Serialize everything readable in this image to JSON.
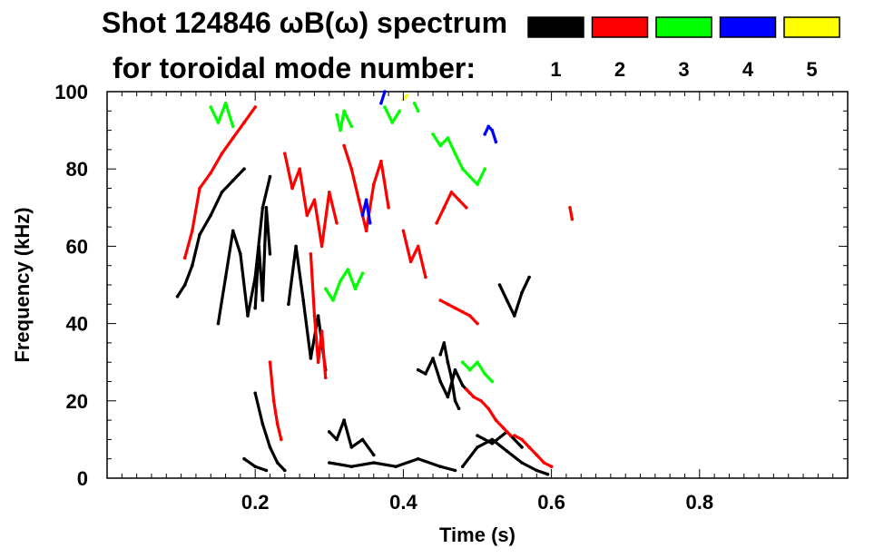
{
  "chart_data": {
    "type": "heatmap",
    "title": "Shot 124846 ωB(ω) spectrum",
    "subtitle": "for toroidal mode number:",
    "xlabel": "Time (s)",
    "ylabel": "Frequency (kHz)",
    "xlim": [
      0.0,
      1.0
    ],
    "ylim": [
      0,
      100
    ],
    "x_ticks": [
      {
        "value": 0.2,
        "label": "0.2"
      },
      {
        "value": 0.4,
        "label": "0.4"
      },
      {
        "value": 0.6,
        "label": "0.6"
      },
      {
        "value": 0.8,
        "label": "0.8"
      }
    ],
    "y_ticks": [
      {
        "value": 0,
        "label": "0"
      },
      {
        "value": 20,
        "label": "20"
      },
      {
        "value": 40,
        "label": "40"
      },
      {
        "value": 60,
        "label": "60"
      },
      {
        "value": 80,
        "label": "80"
      },
      {
        "value": 100,
        "label": "100"
      }
    ],
    "legend_placement": "top-right",
    "legend": [
      {
        "label": "1",
        "color": "#000000"
      },
      {
        "label": "2",
        "color": "#ff0000"
      },
      {
        "label": "3",
        "color": "#00ff00"
      },
      {
        "label": "4",
        "color": "#0000ff"
      },
      {
        "label": "5",
        "color": "#ffff00"
      }
    ],
    "series": [
      {
        "mode": 1,
        "color": "#000000",
        "segments": [
          [
            [
              0.095,
              47
            ],
            [
              0.105,
              50
            ],
            [
              0.115,
              55
            ],
            [
              0.125,
              63
            ],
            [
              0.14,
              68
            ],
            [
              0.155,
              74
            ],
            [
              0.17,
              77
            ],
            [
              0.185,
              80
            ]
          ],
          [
            [
              0.15,
              40
            ],
            [
              0.16,
              52
            ],
            [
              0.17,
              64
            ],
            [
              0.18,
              58
            ],
            [
              0.19,
              42
            ],
            [
              0.2,
              52
            ],
            [
              0.21,
              70
            ],
            [
              0.22,
              78
            ]
          ],
          [
            [
              0.2,
              22
            ],
            [
              0.21,
              14
            ],
            [
              0.22,
              8
            ],
            [
              0.23,
              4
            ],
            [
              0.24,
              2
            ]
          ],
          [
            [
              0.185,
              5
            ],
            [
              0.2,
              3
            ],
            [
              0.215,
              2
            ]
          ],
          [
            [
              0.245,
              45
            ],
            [
              0.255,
              60
            ],
            [
              0.265,
              46
            ],
            [
              0.275,
              31
            ],
            [
              0.285,
              42
            ],
            [
              0.295,
              28
            ]
          ],
          [
            [
              0.3,
              12
            ],
            [
              0.31,
              10
            ],
            [
              0.32,
              15
            ],
            [
              0.33,
              8
            ],
            [
              0.345,
              10
            ],
            [
              0.36,
              6
            ]
          ],
          [
            [
              0.3,
              4
            ],
            [
              0.33,
              3
            ],
            [
              0.36,
              4
            ],
            [
              0.39,
              3
            ],
            [
              0.42,
              5
            ],
            [
              0.45,
              3
            ],
            [
              0.47,
              2
            ]
          ],
          [
            [
              0.42,
              28
            ],
            [
              0.43,
              27
            ],
            [
              0.44,
              31
            ],
            [
              0.45,
              25
            ],
            [
              0.46,
              21
            ],
            [
              0.47,
              28
            ],
            [
              0.48,
              24
            ],
            [
              0.49,
              22
            ]
          ],
          [
            [
              0.45,
              32
            ],
            [
              0.455,
              35
            ],
            [
              0.46,
              30
            ],
            [
              0.465,
              26
            ],
            [
              0.47,
              20
            ],
            [
              0.475,
              18
            ]
          ],
          [
            [
              0.48,
              3
            ],
            [
              0.5,
              8
            ],
            [
              0.52,
              10
            ],
            [
              0.54,
              7
            ],
            [
              0.56,
              4
            ],
            [
              0.58,
              2
            ],
            [
              0.595,
              1
            ]
          ],
          [
            [
              0.5,
              11
            ],
            [
              0.52,
              9
            ],
            [
              0.54,
              12
            ],
            [
              0.56,
              8
            ]
          ],
          [
            [
              0.2,
              44
            ],
            [
              0.205,
              60
            ],
            [
              0.21,
              46
            ],
            [
              0.215,
              70
            ],
            [
              0.22,
              58
            ]
          ],
          [
            [
              0.53,
              50
            ],
            [
              0.54,
              46
            ],
            [
              0.55,
              42
            ],
            [
              0.56,
              48
            ],
            [
              0.57,
              52
            ]
          ]
        ]
      },
      {
        "mode": 2,
        "color": "#ff0000",
        "segments": [
          [
            [
              0.105,
              57
            ],
            [
              0.115,
              64
            ],
            [
              0.125,
              75
            ],
            [
              0.14,
              79
            ],
            [
              0.155,
              84
            ],
            [
              0.17,
              88
            ],
            [
              0.185,
              92
            ],
            [
              0.2,
              96
            ]
          ],
          [
            [
              0.24,
              84
            ],
            [
              0.25,
              75
            ],
            [
              0.26,
              80
            ],
            [
              0.27,
              68
            ],
            [
              0.28,
              72
            ],
            [
              0.29,
              60
            ],
            [
              0.3,
              74
            ],
            [
              0.31,
              66
            ]
          ],
          [
            [
              0.275,
              58
            ],
            [
              0.28,
              42
            ],
            [
              0.285,
              30
            ],
            [
              0.29,
              38
            ],
            [
              0.295,
              26
            ]
          ],
          [
            [
              0.32,
              86
            ],
            [
              0.33,
              80
            ],
            [
              0.34,
              72
            ],
            [
              0.35,
              64
            ],
            [
              0.36,
              76
            ],
            [
              0.37,
              82
            ],
            [
              0.38,
              70
            ]
          ],
          [
            [
              0.4,
              64
            ],
            [
              0.41,
              56
            ],
            [
              0.42,
              60
            ],
            [
              0.43,
              52
            ]
          ],
          [
            [
              0.445,
              66
            ],
            [
              0.455,
              70
            ],
            [
              0.465,
              74
            ],
            [
              0.475,
              72
            ],
            [
              0.485,
              70
            ]
          ],
          [
            [
              0.45,
              46
            ],
            [
              0.46,
              45
            ],
            [
              0.47,
              44
            ],
            [
              0.48,
              43
            ],
            [
              0.49,
              42
            ],
            [
              0.5,
              40
            ]
          ],
          [
            [
              0.485,
              23
            ],
            [
              0.495,
              21
            ],
            [
              0.505,
              20
            ],
            [
              0.515,
              18
            ],
            [
              0.525,
              15
            ],
            [
              0.535,
              13
            ],
            [
              0.545,
              11
            ]
          ],
          [
            [
              0.55,
              11
            ],
            [
              0.56,
              10
            ],
            [
              0.57,
              8
            ],
            [
              0.58,
              6
            ],
            [
              0.59,
              4
            ],
            [
              0.6,
              3
            ]
          ],
          [
            [
              0.22,
              30
            ],
            [
              0.225,
              20
            ],
            [
              0.23,
              14
            ],
            [
              0.235,
              10
            ]
          ],
          [
            [
              0.625,
              70
            ],
            [
              0.628,
              67
            ]
          ]
        ]
      },
      {
        "mode": 3,
        "color": "#00ff00",
        "segments": [
          [
            [
              0.14,
              96
            ],
            [
              0.15,
              92
            ],
            [
              0.16,
              97
            ],
            [
              0.17,
              91
            ]
          ],
          [
            [
              0.295,
              49
            ],
            [
              0.305,
              46
            ],
            [
              0.315,
              51
            ],
            [
              0.325,
              54
            ],
            [
              0.335,
              49
            ],
            [
              0.345,
              53
            ]
          ],
          [
            [
              0.31,
              94
            ],
            [
              0.315,
              90
            ],
            [
              0.32,
              95
            ],
            [
              0.33,
              91
            ]
          ],
          [
            [
              0.375,
              96
            ],
            [
              0.385,
              92
            ],
            [
              0.395,
              95
            ]
          ],
          [
            [
              0.44,
              89
            ],
            [
              0.45,
              86
            ],
            [
              0.46,
              88
            ],
            [
              0.47,
              84
            ],
            [
              0.48,
              80
            ],
            [
              0.49,
              78
            ],
            [
              0.5,
              76
            ],
            [
              0.51,
              80
            ]
          ],
          [
            [
              0.48,
              30
            ],
            [
              0.49,
              28
            ],
            [
              0.5,
              30
            ],
            [
              0.51,
              27
            ],
            [
              0.52,
              25
            ]
          ],
          [
            [
              0.415,
              97
            ],
            [
              0.42,
              95
            ]
          ]
        ]
      },
      {
        "mode": 4,
        "color": "#0000ff",
        "segments": [
          [
            [
              0.51,
              89
            ],
            [
              0.515,
              91
            ],
            [
              0.52,
              90
            ],
            [
              0.525,
              87
            ]
          ],
          [
            [
              0.345,
              68
            ],
            [
              0.35,
              72
            ],
            [
              0.355,
              66
            ]
          ],
          [
            [
              0.37,
              97
            ],
            [
              0.375,
              100
            ]
          ]
        ]
      },
      {
        "mode": 5,
        "color": "#ffff00",
        "segments": [
          [
            [
              0.4,
              98
            ],
            [
              0.405,
              99
            ]
          ]
        ]
      }
    ]
  }
}
